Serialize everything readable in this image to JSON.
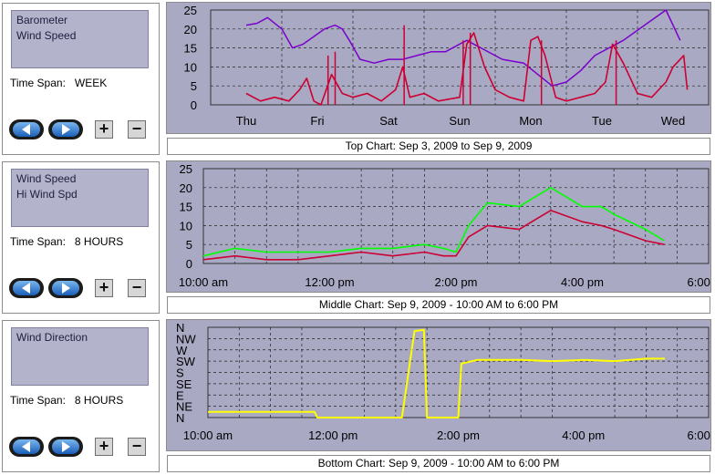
{
  "panels": [
    {
      "series": [
        "Barometer",
        "Wind Speed"
      ],
      "time_span_label": "Time Span:",
      "time_span_value": "WEEK"
    },
    {
      "series": [
        "Wind Speed",
        "Hi Wind Spd"
      ],
      "time_span_label": "Time Span:",
      "time_span_value": "8 HOURS"
    },
    {
      "series": [
        "Wind Direction"
      ],
      "time_span_label": "Time Span:",
      "time_span_value": "8 HOURS"
    }
  ],
  "controls": {
    "prev_icon": "left-arrow-icon",
    "next_icon": "right-arrow-icon",
    "zoom_in_label": "+",
    "zoom_out_label": "−"
  },
  "captions": {
    "top": "Top Chart:  Sep 3, 2009  to  Sep 9, 2009",
    "middle": "Middle Chart:  Sep 9, 2009 - 10:00 AM  to  6:00 PM",
    "bottom": "Bottom Chart:  Sep 9, 2009 - 10:00 AM  to  6:00 PM"
  },
  "colors": {
    "plot_bg": "#a9a9c4",
    "barometer": "#7a00cc",
    "wind_speed": "#cc0033",
    "hi_wind": "#00ff00",
    "wind_dir": "#ffff00"
  },
  "chart_data": [
    {
      "type": "line",
      "title": "",
      "x_ticks": [
        "Thu",
        "Fri",
        "Sat",
        "Sun",
        "Mon",
        "Tue",
        "Wed"
      ],
      "y_ticks": [
        "0",
        "5",
        "10",
        "15",
        "20",
        "25"
      ],
      "ylim": [
        0,
        25
      ],
      "grid": true,
      "series": [
        {
          "name": "Barometer",
          "x": [
            0,
            0.15,
            0.3,
            0.5,
            0.65,
            0.8,
            0.95,
            1.1,
            1.25,
            1.35,
            1.45,
            1.6,
            1.8,
            2.0,
            2.2,
            2.4,
            2.6,
            2.8,
            3.0,
            3.1,
            3.3,
            3.6,
            3.9,
            4.1,
            4.3,
            4.5,
            4.7,
            4.9,
            5.1,
            5.3,
            5.6,
            5.9,
            6.1
          ],
          "values": [
            21,
            21.5,
            23,
            20,
            15,
            16,
            18,
            20,
            21,
            20,
            17,
            12,
            11,
            12,
            12,
            13,
            14,
            14,
            16,
            17,
            15,
            12,
            11,
            8,
            5,
            6,
            9,
            13,
            15,
            17,
            21,
            25,
            17
          ]
        },
        {
          "name": "Wind Speed",
          "x": [
            0,
            0.2,
            0.4,
            0.6,
            0.75,
            0.85,
            0.95,
            1.05,
            1.2,
            1.35,
            1.5,
            1.7,
            1.9,
            2.1,
            2.2,
            2.3,
            2.5,
            2.7,
            3.0,
            3.1,
            3.2,
            3.35,
            3.5,
            3.7,
            3.9,
            4.0,
            4.1,
            4.2,
            4.35,
            4.5,
            4.7,
            4.9,
            5.05,
            5.15,
            5.3,
            5.5,
            5.7,
            5.9,
            6.0,
            6.15,
            6.2
          ],
          "values": [
            3,
            1,
            2,
            1,
            4,
            7,
            1,
            0,
            8,
            3,
            2,
            3,
            1,
            4,
            10,
            2,
            3,
            1,
            2,
            16,
            19,
            10,
            4,
            2,
            1,
            17,
            18,
            13,
            2,
            1,
            2,
            3,
            6,
            16,
            11,
            3,
            2,
            6,
            10,
            13,
            4
          ]
        },
        {
          "name": "Hi Wind Spd",
          "x": [
            1.05,
            1.15,
            1.25,
            2.18,
            2.22,
            2.26,
            3.05,
            3.15,
            4.15,
            5.1,
            5.2
          ],
          "values": [
            0,
            13,
            14,
            0,
            21,
            0,
            17,
            19,
            17,
            0,
            17
          ]
        }
      ]
    },
    {
      "type": "line",
      "title": "",
      "x_ticks": [
        "10:00 am",
        "12:00 pm",
        "2:00 pm",
        "4:00 pm",
        "6:00 pm"
      ],
      "y_ticks": [
        "0",
        "5",
        "10",
        "15",
        "20",
        "25"
      ],
      "ylim": [
        0,
        25
      ],
      "grid": true,
      "series": [
        {
          "name": "Wind Speed",
          "x": [
            10.0,
            10.5,
            11.0,
            11.5,
            12.0,
            12.5,
            13.0,
            13.5,
            13.8,
            14.0,
            14.2,
            14.5,
            15.0,
            15.3,
            15.5,
            16.0,
            16.3,
            16.5,
            17.0,
            17.3
          ],
          "values": [
            1,
            2,
            1,
            1,
            2,
            3,
            2,
            3,
            2,
            2,
            7,
            10,
            9,
            12,
            14,
            11,
            10,
            9,
            6,
            5
          ]
        },
        {
          "name": "Hi Wind Spd",
          "x": [
            10.0,
            10.5,
            11.0,
            11.5,
            12.0,
            12.5,
            13.0,
            13.5,
            13.8,
            14.0,
            14.2,
            14.5,
            15.0,
            15.3,
            15.5,
            16.0,
            16.3,
            16.5,
            17.0,
            17.3
          ],
          "values": [
            2,
            4,
            3,
            3,
            3,
            4,
            4,
            5,
            4,
            3,
            10,
            16,
            15,
            18,
            20,
            15,
            15,
            13,
            9,
            6
          ]
        }
      ]
    },
    {
      "type": "line",
      "title": "",
      "x_ticks": [
        "10:00 am",
        "12:00 pm",
        "2:00 pm",
        "4:00 pm",
        "6:00 pm"
      ],
      "y_ticks": [
        "N",
        "NE",
        "E",
        "SE",
        "S",
        "SW",
        "W",
        "NW",
        "N"
      ],
      "ylim": [
        0,
        360
      ],
      "grid": true,
      "series": [
        {
          "name": "Wind Direction",
          "x": [
            10.0,
            11.7,
            11.75,
            13.0,
            13.1,
            13.3,
            13.45,
            13.5,
            13.95,
            14.0,
            14.05,
            14.3,
            15.0,
            15.5,
            16.0,
            16.5,
            17.0,
            17.3
          ],
          "values": [
            23,
            23,
            0,
            0,
            0,
            345,
            350,
            0,
            0,
            0,
            215,
            230,
            230,
            225,
            230,
            225,
            235,
            235
          ]
        }
      ]
    }
  ]
}
